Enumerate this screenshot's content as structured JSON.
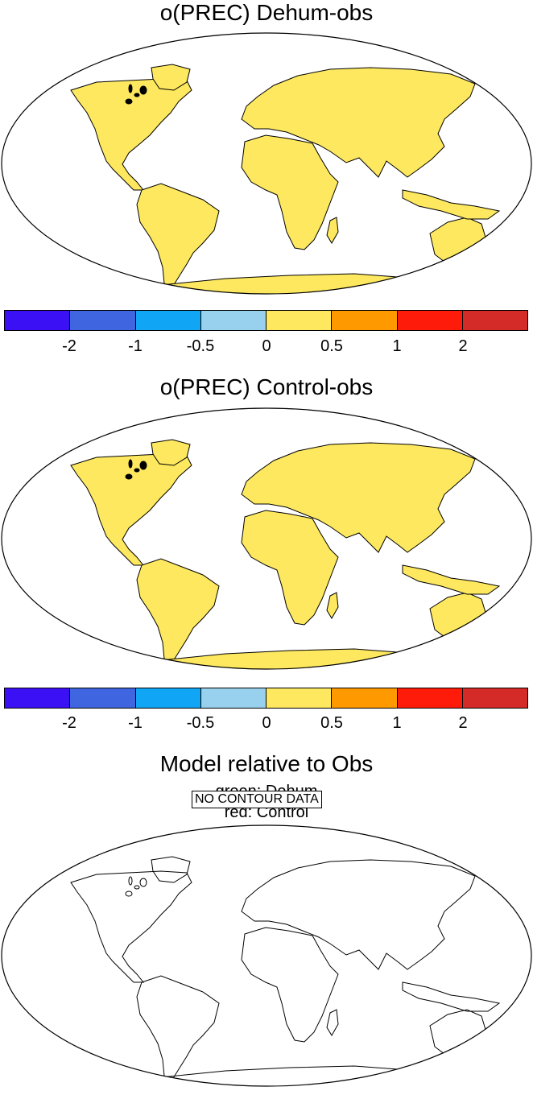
{
  "panels": [
    {
      "title": "o(PREC) Dehum-obs",
      "colorbar": {
        "colors": [
          "#3b10f5",
          "#3f66e0",
          "#10a6f5",
          "#98d1ee",
          "#fde85f",
          "#fe9a00",
          "#ff1b0a",
          "#d42a28"
        ],
        "tick_labels": [
          "-2",
          "-1",
          "-0.5",
          "0",
          "0.5",
          "1",
          "2"
        ]
      }
    },
    {
      "title": "o(PREC) Control-obs",
      "colorbar": {
        "colors": [
          "#3b10f5",
          "#3f66e0",
          "#10a6f5",
          "#98d1ee",
          "#fde85f",
          "#fe9a00",
          "#ff1b0a",
          "#d42a28"
        ],
        "tick_labels": [
          "-2",
          "-1",
          "-0.5",
          "0",
          "0.5",
          "1",
          "2"
        ]
      }
    },
    {
      "title": "Model relative to Obs",
      "legend_line1": "green: Dehum",
      "legend_line2": "red: Control",
      "no_data_label": "NO CONTOUR DATA"
    }
  ],
  "colors": {
    "land_fill": "#fde85f",
    "light_blue": "#98d1ee",
    "outline": "#000000"
  }
}
